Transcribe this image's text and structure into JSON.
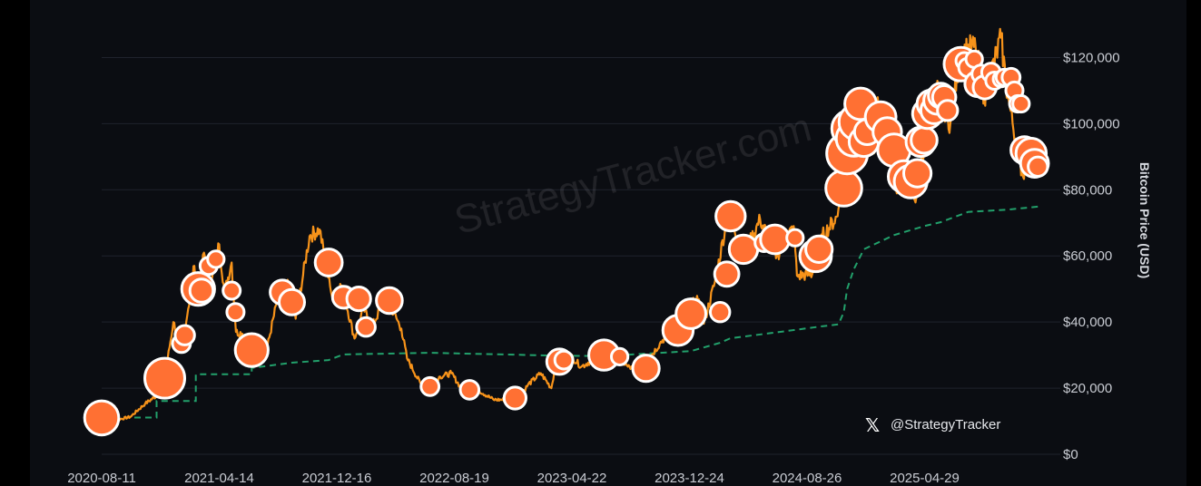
{
  "chart_data": {
    "type": "line",
    "ylabel": "Bitcoin Price (USD)",
    "xlabel": "",
    "ylim": [
      0,
      130000
    ],
    "y_ticks": [
      0,
      20000,
      40000,
      60000,
      80000,
      100000,
      120000
    ],
    "y_tick_labels": [
      "$0",
      "$20,000",
      "$40,000",
      "$60,000",
      "$80,000",
      "$100,000",
      "$120,000"
    ],
    "x_tick_labels": [
      "2020-08-11",
      "2021-04-14",
      "2021-12-16",
      "2022-08-19",
      "2023-04-22",
      "2023-12-24",
      "2024-08-26",
      "2025-04-29"
    ],
    "x_range": [
      "2020-08-11",
      "2025-12-31"
    ],
    "grid": true,
    "watermark": "StrategyTracker.com",
    "handle": "@StrategyTracker",
    "colors": {
      "price_line": "#f7931a",
      "avg_cost_line": "#22a06b",
      "purchase_bubble": "#ff7033",
      "bubble_outline": "#ffffff",
      "background": "#0b0d12"
    },
    "series": [
      {
        "values": [
          [
            "2020-08-11",
            11500
          ],
          [
            "2020-09-10",
            10400
          ],
          [
            "2020-10-10",
            11300
          ],
          [
            "2020-11-10",
            15300
          ],
          [
            "2020-12-10",
            18300
          ],
          [
            "2020-12-21",
            23000
          ],
          [
            "2021-01-08",
            40000
          ],
          [
            "2021-01-25",
            32000
          ],
          [
            "2021-02-08",
            44000
          ],
          [
            "2021-02-21",
            57000
          ],
          [
            "2021-03-01",
            48000
          ],
          [
            "2021-03-13",
            61000
          ],
          [
            "2021-03-25",
            52000
          ],
          [
            "2021-04-14",
            63500
          ],
          [
            "2021-04-25",
            49000
          ],
          [
            "2021-05-10",
            58000
          ],
          [
            "2021-05-19",
            37000
          ],
          [
            "2021-06-01",
            36500
          ],
          [
            "2021-06-22",
            32000
          ],
          [
            "2021-07-20",
            30000
          ],
          [
            "2021-08-14",
            47000
          ],
          [
            "2021-09-06",
            52000
          ],
          [
            "2021-09-21",
            41000
          ],
          [
            "2021-10-20",
            66000
          ],
          [
            "2021-11-10",
            68000
          ],
          [
            "2021-12-04",
            49000
          ],
          [
            "2021-12-27",
            51000
          ],
          [
            "2022-01-22",
            35000
          ],
          [
            "2022-02-10",
            44000
          ],
          [
            "2022-03-01",
            39000
          ],
          [
            "2022-03-29",
            47500
          ],
          [
            "2022-04-30",
            38000
          ],
          [
            "2022-05-12",
            29000
          ],
          [
            "2022-06-18",
            19000
          ],
          [
            "2022-07-20",
            23500
          ],
          [
            "2022-08-13",
            24500
          ],
          [
            "2022-09-07",
            19000
          ],
          [
            "2022-10-10",
            19200
          ],
          [
            "2022-11-09",
            16500
          ],
          [
            "2022-12-30",
            16500
          ],
          [
            "2023-01-20",
            21000
          ],
          [
            "2023-02-16",
            24500
          ],
          [
            "2023-03-10",
            20000
          ],
          [
            "2023-03-20",
            28000
          ],
          [
            "2023-04-14",
            30500
          ],
          [
            "2023-05-12",
            26500
          ],
          [
            "2023-06-21",
            30000
          ],
          [
            "2023-07-13",
            31500
          ],
          [
            "2023-08-17",
            26500
          ],
          [
            "2023-09-11",
            25000
          ],
          [
            "2023-10-23",
            33500
          ],
          [
            "2023-11-15",
            37500
          ],
          [
            "2023-12-08",
            44000
          ],
          [
            "2024-01-11",
            46500
          ],
          [
            "2024-01-23",
            39500
          ],
          [
            "2024-02-15",
            52000
          ],
          [
            "2024-03-14",
            73000
          ],
          [
            "2024-04-18",
            61000
          ],
          [
            "2024-05-20",
            71000
          ],
          [
            "2024-06-24",
            60000
          ],
          [
            "2024-07-29",
            69000
          ],
          [
            "2024-08-05",
            54000
          ],
          [
            "2024-09-06",
            54500
          ],
          [
            "2024-09-27",
            66000
          ],
          [
            "2024-10-29",
            72000
          ],
          [
            "2024-11-12",
            89000
          ],
          [
            "2024-11-22",
            99000
          ],
          [
            "2024-12-17",
            107000
          ],
          [
            "2025-01-13",
            91000
          ],
          [
            "2025-01-21",
            108000
          ],
          [
            "2025-02-28",
            80000
          ],
          [
            "2025-03-24",
            88000
          ],
          [
            "2025-04-08",
            77000
          ],
          [
            "2025-05-22",
            111000
          ],
          [
            "2025-06-22",
            100000
          ],
          [
            "2025-07-14",
            122000
          ],
          [
            "2025-08-14",
            123000
          ],
          [
            "2025-09-01",
            108000
          ],
          [
            "2025-10-06",
            126000
          ],
          [
            "2025-10-20",
            108000
          ],
          [
            "2025-11-21",
            84000
          ],
          [
            "2025-12-03",
            92000
          ],
          [
            "2025-12-20",
            87000
          ]
        ]
      },
      {
        "values": [
          [
            "2020-08-11",
            11100
          ],
          [
            "2020-12-04",
            11100
          ],
          [
            "2020-12-04",
            16100
          ],
          [
            "2021-02-24",
            16100
          ],
          [
            "2021-02-24",
            24200
          ],
          [
            "2021-06-21",
            24200
          ],
          [
            "2021-06-21",
            26100
          ],
          [
            "2021-09-13",
            27700
          ],
          [
            "2021-11-29",
            28500
          ],
          [
            "2021-12-30",
            30200
          ],
          [
            "2022-06-29",
            30700
          ],
          [
            "2023-03-27",
            29800
          ],
          [
            "2023-06-28",
            29700
          ],
          [
            "2023-12-27",
            31200
          ],
          [
            "2024-02-26",
            33700
          ],
          [
            "2024-03-19",
            35100
          ],
          [
            "2024-06-20",
            36800
          ],
          [
            "2024-09-20",
            38600
          ],
          [
            "2024-10-31",
            39300
          ],
          [
            "2024-11-11",
            43000
          ],
          [
            "2024-11-18",
            50000
          ],
          [
            "2024-12-02",
            56000
          ],
          [
            "2024-12-23",
            62000
          ],
          [
            "2025-02-24",
            66300
          ],
          [
            "2025-04-28",
            69000
          ],
          [
            "2025-06-02",
            70200
          ],
          [
            "2025-07-29",
            73300
          ],
          [
            "2025-10-20",
            74000
          ],
          [
            "2025-12-22",
            74900
          ]
        ]
      }
    ],
    "purchases": [
      [
        "2020-08-11",
        11000,
        21500
      ],
      [
        "2020-12-21",
        23000,
        29500
      ],
      [
        "2021-01-25",
        33500,
        6000
      ],
      [
        "2021-02-01",
        36000,
        7000
      ],
      [
        "2021-03-01",
        50000,
        20000
      ],
      [
        "2021-03-08",
        49500,
        10000
      ],
      [
        "2021-03-23",
        57000,
        5500
      ],
      [
        "2021-04-07",
        59000,
        5000
      ],
      [
        "2021-05-10",
        49500,
        5500
      ],
      [
        "2021-05-18",
        43000,
        5500
      ],
      [
        "2021-06-21",
        31500,
        20000
      ],
      [
        "2021-08-24",
        49000,
        11000
      ],
      [
        "2021-09-13",
        46000,
        12000
      ],
      [
        "2021-11-29",
        58000,
        13500
      ],
      [
        "2021-12-30",
        47500,
        9000
      ],
      [
        "2022-01-31",
        47000,
        10500
      ],
      [
        "2022-02-15",
        38500,
        6500
      ],
      [
        "2022-04-05",
        46500,
        12500
      ],
      [
        "2022-06-29",
        20500,
        6000
      ],
      [
        "2022-09-20",
        19500,
        6500
      ],
      [
        "2022-12-24",
        17000,
        9000
      ],
      [
        "2023-03-27",
        28000,
        12000
      ],
      [
        "2023-04-05",
        28500,
        6000
      ],
      [
        "2023-06-28",
        30000,
        17000
      ],
      [
        "2023-07-31",
        29500,
        5000
      ],
      [
        "2023-09-24",
        26000,
        13000
      ],
      [
        "2023-11-30",
        37500,
        17000
      ],
      [
        "2023-12-27",
        42500,
        16500
      ],
      [
        "2024-02-26",
        43000,
        7000
      ],
      [
        "2024-03-11",
        54500,
        11000
      ],
      [
        "2024-03-19",
        72000,
        16000
      ],
      [
        "2024-04-15",
        62000,
        15000
      ],
      [
        "2024-05-28",
        64000,
        6000
      ],
      [
        "2024-06-20",
        65000,
        15500
      ],
      [
        "2024-08-01",
        65500,
        5000
      ],
      [
        "2024-09-13",
        60000,
        18500
      ],
      [
        "2024-09-20",
        62000,
        13000
      ],
      [
        "2024-11-11",
        80500,
        24000
      ],
      [
        "2024-11-18",
        91000,
        31000
      ],
      [
        "2024-11-25",
        98500,
        26000
      ],
      [
        "2024-12-02",
        95500,
        23000
      ],
      [
        "2024-12-09",
        100500,
        24500
      ],
      [
        "2024-12-16",
        106000,
        18500
      ],
      [
        "2024-12-23",
        94500,
        16000
      ],
      [
        "2024-12-30",
        97500,
        12000
      ],
      [
        "2025-01-27",
        102000,
        17500
      ],
      [
        "2025-02-10",
        97500,
        15000
      ],
      [
        "2025-02-24",
        92000,
        19500
      ],
      [
        "2025-03-17",
        84000,
        18500
      ],
      [
        "2025-03-31",
        82500,
        20000
      ],
      [
        "2025-04-14",
        85000,
        14000
      ],
      [
        "2025-04-21",
        94500,
        16000
      ],
      [
        "2025-04-28",
        95000,
        12500
      ],
      [
        "2025-05-05",
        103000,
        16500
      ],
      [
        "2025-05-12",
        106000,
        14000
      ],
      [
        "2025-05-19",
        104000,
        13000
      ],
      [
        "2025-05-26",
        107000,
        14000
      ],
      [
        "2025-06-02",
        108500,
        11500
      ],
      [
        "2025-06-09",
        108000,
        10000
      ],
      [
        "2025-06-16",
        104000,
        7500
      ],
      [
        "2025-07-14",
        118000,
        21000
      ],
      [
        "2025-07-21",
        119000,
        5000
      ],
      [
        "2025-07-29",
        117000,
        6500
      ],
      [
        "2025-08-11",
        119500,
        5000
      ],
      [
        "2025-08-18",
        112000,
        12000
      ],
      [
        "2025-08-25",
        115000,
        6000
      ],
      [
        "2025-09-02",
        111000,
        10000
      ],
      [
        "2025-09-15",
        115500,
        6500
      ],
      [
        "2025-09-22",
        113000,
        5500
      ],
      [
        "2025-10-06",
        113500,
        4500
      ],
      [
        "2025-10-13",
        114000,
        5000
      ],
      [
        "2025-10-27",
        114000,
        6000
      ],
      [
        "2025-11-03",
        110000,
        5500
      ],
      [
        "2025-11-10",
        106000,
        5000
      ],
      [
        "2025-11-17",
        106000,
        5000
      ],
      [
        "2025-11-24",
        92000,
        13500
      ],
      [
        "2025-12-08",
        91000,
        17000
      ],
      [
        "2025-12-15",
        88000,
        14500
      ],
      [
        "2025-12-22",
        87000,
        7000
      ]
    ]
  }
}
